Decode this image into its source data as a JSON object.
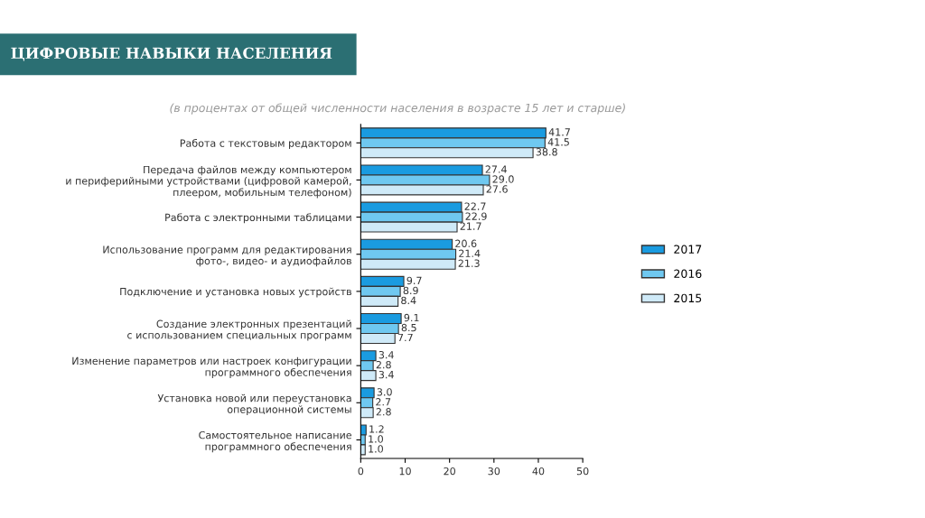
{
  "chart_data": {
    "type": "bar",
    "orientation": "horizontal",
    "title": "ЦИФРОВЫЕ НАВЫКИ НАСЕЛЕНИЯ",
    "subtitle": "(в процентах от общей численности населения в возрасте 15 лет и старше)",
    "categories": [
      "Работа с текстовым редактором",
      "Передача файлов между компьютером\nи периферийными устройствами (цифровой камерой,\nплеером, мобильным телефоном)",
      "Работа с электронными таблицами",
      "Использование программ для редактирования\nфото-, видео- и аудиофайлов",
      "Подключение и установка новых устройств",
      "Создание электронных презентаций\nс использованием специальных программ",
      "Изменение параметров или настроек конфигурации\nпрограммного обеспечения",
      "Установка новой или переустановка\nоперационной системы",
      "Самостоятельное написание\nпрограммного обеспечения"
    ],
    "series": [
      {
        "name": "2017",
        "color": "#1a9be0",
        "values": [
          41.7,
          27.4,
          22.7,
          20.6,
          9.7,
          9.1,
          3.4,
          3.0,
          1.2
        ],
        "value_labels": [
          "41.7",
          "27.4",
          "22.7",
          "20.6",
          "9.7",
          "9.1",
          "3.4",
          "3.0",
          "1.2"
        ]
      },
      {
        "name": "2016",
        "color": "#6fc8f0",
        "values": [
          41.5,
          29.0,
          22.9,
          21.4,
          8.9,
          8.5,
          2.8,
          2.7,
          1.0
        ],
        "value_labels": [
          "41.5",
          "29.0",
          "22.9",
          "21.4",
          "8.9",
          "8.5",
          "2.8",
          "2.7",
          "1.0"
        ]
      },
      {
        "name": "2015",
        "color": "#cfeaf8",
        "values": [
          38.8,
          27.6,
          21.7,
          21.3,
          8.4,
          7.7,
          3.4,
          2.8,
          1.0
        ],
        "value_labels": [
          "38.8",
          "27.6",
          "21.7",
          "21.3",
          "8.4",
          "7.7",
          "3.4",
          "2.8",
          "1.0"
        ]
      }
    ],
    "xlim": [
      0,
      50
    ],
    "xticks": [
      0,
      10,
      20,
      30,
      40,
      50
    ],
    "grid": false,
    "legend": "right"
  }
}
